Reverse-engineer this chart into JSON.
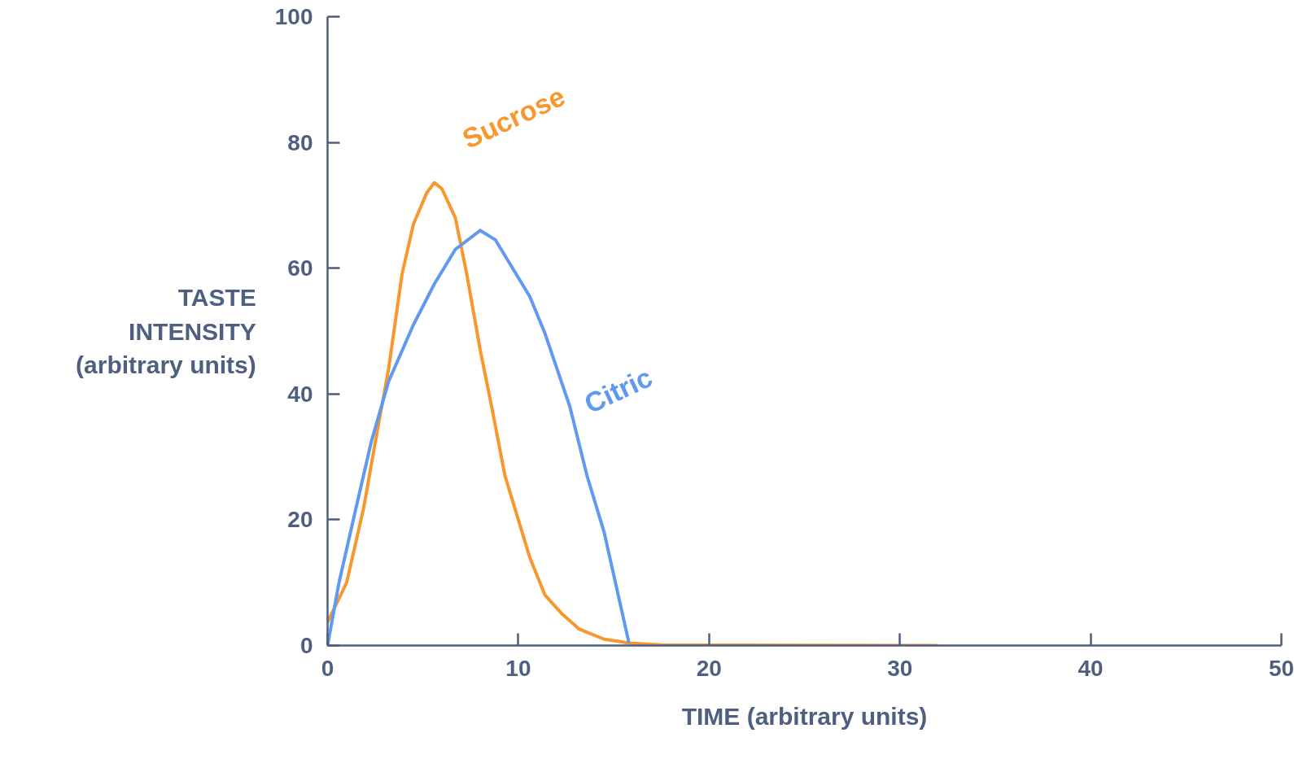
{
  "chart_data": {
    "type": "line",
    "xlabel": "TIME (arbitrary units)",
    "ylabel": "TASTE\nINTENSITY\n(arbitrary units)",
    "xlim": [
      0,
      50
    ],
    "ylim": [
      0,
      100
    ],
    "xticks": [
      0,
      10,
      20,
      30,
      40,
      50
    ],
    "yticks": [
      0,
      20,
      40,
      60,
      80,
      100
    ],
    "grid": false,
    "marker": "none",
    "line_style": "solid",
    "series": [
      {
        "name": "Sucrose",
        "color": "#f7982f",
        "x": [
          0,
          1.0,
          1.9,
          2.6,
          3.2,
          3.9,
          4.5,
          5.2,
          5.6,
          6.0,
          6.7,
          7.3,
          8.0,
          8.6,
          9.3,
          9.9,
          10.6,
          11.4,
          12.3,
          13.2,
          14.5,
          15.8,
          17.5,
          32
        ],
        "values": [
          3.7,
          10,
          22,
          34,
          44,
          59,
          67,
          72,
          73.6,
          72.6,
          68,
          59,
          47,
          38,
          27,
          21,
          14,
          8,
          5,
          2.6,
          1,
          0.4,
          0.1,
          0
        ]
      },
      {
        "name": "Citric",
        "color": "#6199f0",
        "x": [
          0,
          0.6,
          1.5,
          2.3,
          3.2,
          4.5,
          5.6,
          6.7,
          8.0,
          8.8,
          9.7,
          10.6,
          11.4,
          12.7,
          13.6,
          14.5,
          15.8
        ],
        "values": [
          0,
          10,
          22,
          32.5,
          42,
          51,
          57.5,
          63,
          66,
          64.5,
          60,
          55.5,
          49.6,
          38,
          27,
          18,
          0.4
        ]
      }
    ]
  }
}
